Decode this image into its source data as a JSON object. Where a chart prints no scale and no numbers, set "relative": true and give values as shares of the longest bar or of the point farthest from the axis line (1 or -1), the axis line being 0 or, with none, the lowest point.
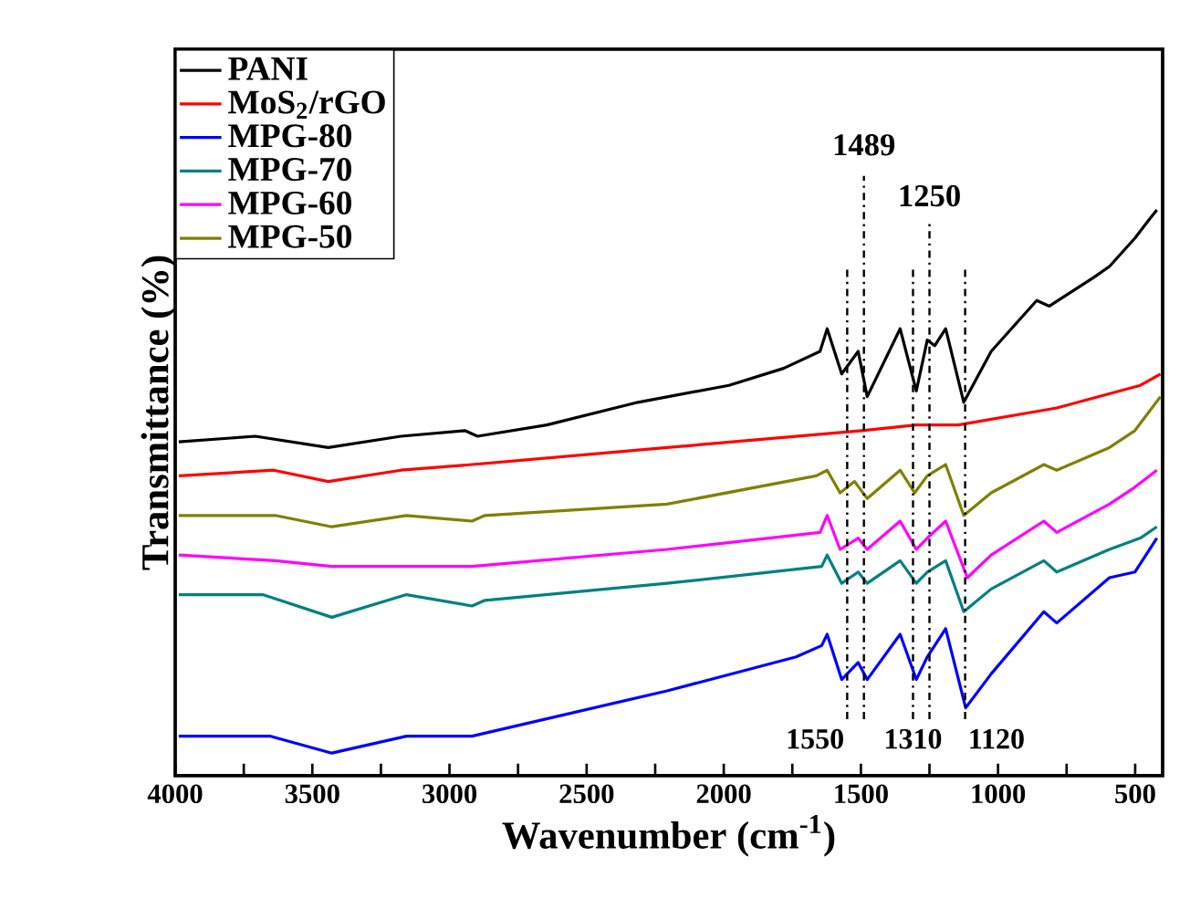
{
  "chart_data": {
    "type": "line",
    "relative": true,
    "xlabel": "Wavenumber (cm$^{-1}$)",
    "ylabel": "Transmittance (%)",
    "xlim": [
      4000,
      400
    ],
    "xticks": [
      4000,
      {
        "value": 3750,
        "label": null
      },
      3500,
      {
        "value": 3250,
        "label": null
      },
      3000,
      {
        "value": 2750,
        "label": null
      },
      2500,
      {
        "value": 2250,
        "label": null
      },
      2000,
      {
        "value": 1750,
        "label": null
      },
      1500,
      {
        "value": 1250,
        "label": null
      },
      1000,
      {
        "value": 750,
        "label": null
      },
      500
    ],
    "legend": "top left",
    "marker": "none",
    "line_style": "solid",
    "series": [
      {
        "name": "PANI",
        "color": "#000000",
        "x": [
          3987,
          3708,
          3442,
          3177,
          2944,
          2898,
          2645,
          2313,
          1981,
          1782,
          1649,
          1623,
          1570,
          1510,
          1477,
          1357,
          1298,
          1258,
          1231,
          1191,
          1125,
          1025,
          859,
          813,
          653,
          594,
          501,
          454,
          421
        ],
        "values": [
          0.59,
          0.6,
          0.58,
          0.6,
          0.61,
          0.6,
          0.62,
          0.66,
          0.69,
          0.72,
          0.75,
          0.79,
          0.71,
          0.75,
          0.67,
          0.79,
          0.68,
          0.77,
          0.76,
          0.79,
          0.66,
          0.75,
          0.84,
          0.83,
          0.88,
          0.9,
          0.95,
          0.98,
          1.0
        ]
      },
      {
        "name": "MoS$_{2}$/rGO",
        "color": "#ff0000",
        "x": [
          3987,
          3641,
          3442,
          3177,
          2918,
          2207,
          1497,
          1298,
          1145,
          786,
          481,
          408
        ],
        "values": [
          0.53,
          0.54,
          0.52,
          0.54,
          0.55,
          0.58,
          0.61,
          0.62,
          0.62,
          0.65,
          0.69,
          0.71
        ]
      },
      {
        "name": "MPG-80",
        "color": "#0000ff",
        "x": [
          3987,
          3655,
          3429,
          3157,
          2918,
          2207,
          1736,
          1643,
          1623,
          1570,
          1510,
          1477,
          1357,
          1298,
          1258,
          1191,
          1118,
          1025,
          833,
          786,
          594,
          501,
          421
        ],
        "values": [
          0.07,
          0.07,
          0.04,
          0.07,
          0.07,
          0.15,
          0.21,
          0.23,
          0.25,
          0.17,
          0.2,
          0.17,
          0.25,
          0.17,
          0.21,
          0.26,
          0.12,
          0.18,
          0.29,
          0.27,
          0.35,
          0.36,
          0.42
        ]
      },
      {
        "name": "MPG-70",
        "color": "#008080",
        "x": [
          3987,
          3681,
          3429,
          3157,
          2918,
          2871,
          2207,
          1643,
          1623,
          1570,
          1510,
          1477,
          1357,
          1298,
          1258,
          1191,
          1125,
          1025,
          833,
          786,
          594,
          481,
          421
        ],
        "values": [
          0.32,
          0.32,
          0.28,
          0.32,
          0.3,
          0.31,
          0.34,
          0.37,
          0.39,
          0.34,
          0.36,
          0.34,
          0.38,
          0.34,
          0.36,
          0.38,
          0.29,
          0.33,
          0.38,
          0.36,
          0.4,
          0.42,
          0.44
        ]
      },
      {
        "name": "MPG-60",
        "color": "#ff00ff",
        "x": [
          3987,
          3635,
          3429,
          2918,
          2207,
          1649,
          1623,
          1576,
          1510,
          1477,
          1357,
          1298,
          1258,
          1191,
          1112,
          1025,
          833,
          786,
          594,
          501,
          421
        ],
        "values": [
          0.39,
          0.38,
          0.37,
          0.37,
          0.4,
          0.43,
          0.46,
          0.4,
          0.42,
          0.4,
          0.45,
          0.4,
          0.42,
          0.45,
          0.35,
          0.39,
          0.45,
          0.43,
          0.48,
          0.51,
          0.54
        ]
      },
      {
        "name": "MPG-50",
        "color": "#808000",
        "x": [
          3987,
          3635,
          3429,
          3157,
          2918,
          2871,
          2207,
          1663,
          1623,
          1576,
          1523,
          1477,
          1357,
          1304,
          1258,
          1191,
          1125,
          1025,
          833,
          786,
          594,
          501,
          408
        ],
        "values": [
          0.46,
          0.46,
          0.44,
          0.46,
          0.45,
          0.46,
          0.48,
          0.53,
          0.54,
          0.5,
          0.52,
          0.49,
          0.54,
          0.5,
          0.53,
          0.55,
          0.46,
          0.5,
          0.55,
          0.54,
          0.58,
          0.61,
          0.67
        ]
      }
    ],
    "ref_lines": [
      {
        "axis": "x",
        "value": 1550,
        "label": "1550",
        "line_style": "dashed"
      },
      {
        "axis": "x",
        "value": 1489,
        "label": "1489",
        "line_style": "dashed"
      },
      {
        "axis": "x",
        "value": 1310,
        "label": "1310",
        "line_style": "dashed"
      },
      {
        "axis": "x",
        "value": 1250,
        "label": "1250",
        "line_style": "dashed"
      },
      {
        "axis": "x",
        "value": 1120,
        "label": "1120",
        "line_style": "dashed"
      }
    ]
  }
}
